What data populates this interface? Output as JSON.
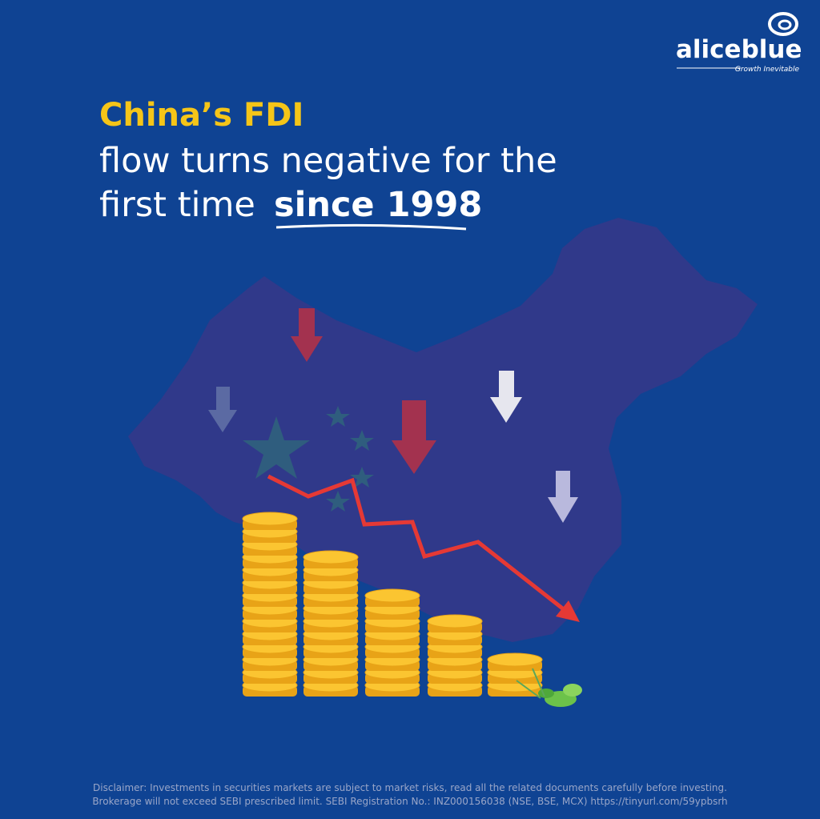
{
  "brand": {
    "name": "aliceblue",
    "tagline": "Growth Inevitable"
  },
  "headline": {
    "highlight": "China’s FDI",
    "line2": "flow turns negative for the",
    "line3_start": "first time",
    "line3_emphasis": "since 1998"
  },
  "disclaimer": {
    "line1": "Disclaimer: Investments in securities markets are subject to market risks, read all the related documents carefully before investing.",
    "line2": "Brokerage will not exceed SEBI prescribed limit. SEBI Registration No.: INZ000156038 (NSE, BSE, MCX) https://tinyurl.com/59ypbsrh"
  }
}
